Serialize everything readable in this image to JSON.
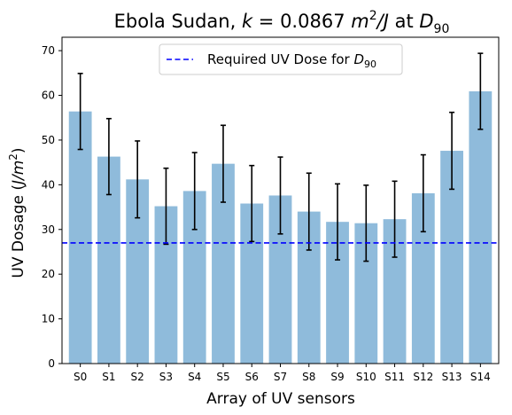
{
  "chart_data": {
    "type": "bar",
    "title_parts": {
      "prefix": "Ebola Sudan, ",
      "k": "k",
      "eq": " = 0.0867 ",
      "m": "m",
      "sup": "2",
      "j": "/J",
      "at": " at ",
      "d": "D",
      "sub": "90"
    },
    "xlabel": "Array of UV sensors",
    "ylabel_parts": {
      "main": "UV Dosage (",
      "jm": "J/m",
      "sup": "2",
      "close": ")"
    },
    "categories": [
      "S0",
      "S1",
      "S2",
      "S3",
      "S4",
      "S5",
      "S6",
      "S7",
      "S8",
      "S9",
      "S10",
      "S11",
      "S12",
      "S13",
      "S14"
    ],
    "values": [
      56.4,
      46.3,
      41.2,
      35.2,
      38.6,
      44.7,
      35.8,
      37.6,
      34.0,
      31.7,
      31.4,
      32.3,
      38.1,
      47.6,
      60.9
    ],
    "errors": [
      8.5,
      8.5,
      8.6,
      8.5,
      8.6,
      8.6,
      8.5,
      8.6,
      8.6,
      8.5,
      8.5,
      8.5,
      8.6,
      8.6,
      8.5
    ],
    "ylim": [
      0,
      73
    ],
    "yticks": [
      0,
      10,
      20,
      30,
      40,
      50,
      60,
      70
    ],
    "threshold": {
      "value": 27.0,
      "color": "#0000ff"
    },
    "legend_parts": {
      "text": "Required UV Dose for ",
      "d": "D",
      "sub": "90"
    },
    "legend_position": "top-center",
    "bar_color": "#8fbbdb",
    "grid": false
  }
}
